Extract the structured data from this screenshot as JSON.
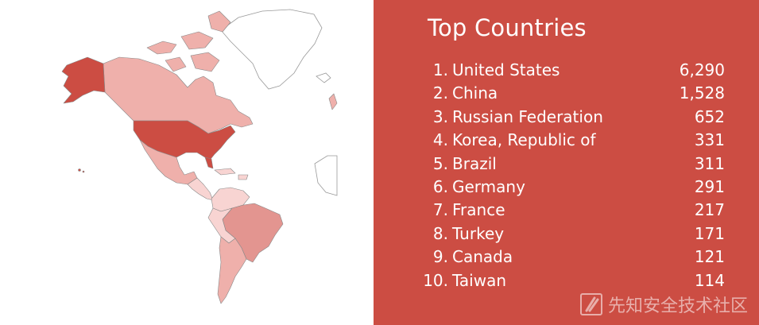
{
  "panel": {
    "title": "Top Countries"
  },
  "countries": [
    {
      "rank": "1.",
      "name": "United States",
      "value": "6,290"
    },
    {
      "rank": "2.",
      "name": "China",
      "value": "1,528"
    },
    {
      "rank": "3.",
      "name": "Russian Federation",
      "value": "652"
    },
    {
      "rank": "4.",
      "name": "Korea, Republic of",
      "value": "331"
    },
    {
      "rank": "5.",
      "name": "Brazil",
      "value": "311"
    },
    {
      "rank": "6.",
      "name": "Germany",
      "value": "291"
    },
    {
      "rank": "7.",
      "name": "France",
      "value": "217"
    },
    {
      "rank": "8.",
      "name": "Turkey",
      "value": "171"
    },
    {
      "rank": "9.",
      "name": "Canada",
      "value": "121"
    },
    {
      "rank": "10.",
      "name": "Taiwan",
      "value": "114"
    }
  ],
  "map": {
    "colors": {
      "top": "#cc4d43",
      "high": "#e39590",
      "medium": "#efb0ab",
      "low": "#f8d4d2",
      "none": "#ffffff"
    }
  },
  "watermark": {
    "text": "先知安全技术社区",
    "logo_icon": "xianzhi-logo-icon"
  }
}
